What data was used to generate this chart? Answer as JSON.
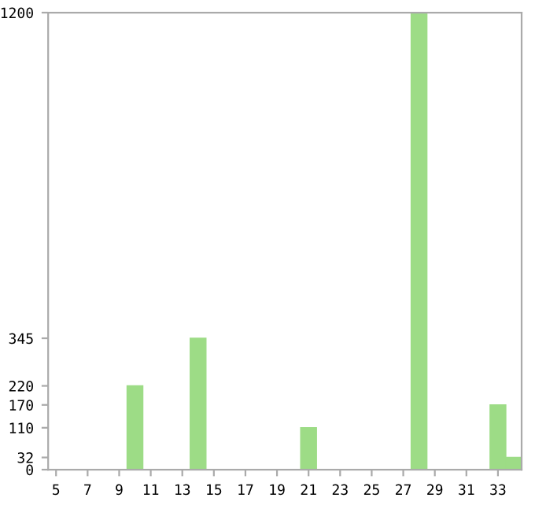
{
  "chart_data": {
    "type": "bar",
    "categories": [
      "5",
      null,
      "7",
      null,
      "9",
      null,
      "11",
      null,
      "13",
      null,
      "15",
      null,
      "17",
      null,
      "19",
      null,
      "21",
      null,
      "23",
      null,
      "25",
      null,
      "27",
      null,
      "29",
      null,
      "31",
      null,
      "33",
      null
    ],
    "values": [
      0,
      0,
      0,
      0,
      0,
      220,
      0,
      0,
      0,
      345,
      0,
      0,
      0,
      0,
      0,
      0,
      110,
      0,
      0,
      0,
      0,
      0,
      0,
      1200,
      0,
      0,
      0,
      0,
      170,
      32
    ],
    "color": "#9ddc86",
    "ylim": [
      0,
      1200
    ],
    "yticks": [
      0,
      32,
      110,
      170,
      220,
      345,
      1200
    ],
    "grid": false
  }
}
